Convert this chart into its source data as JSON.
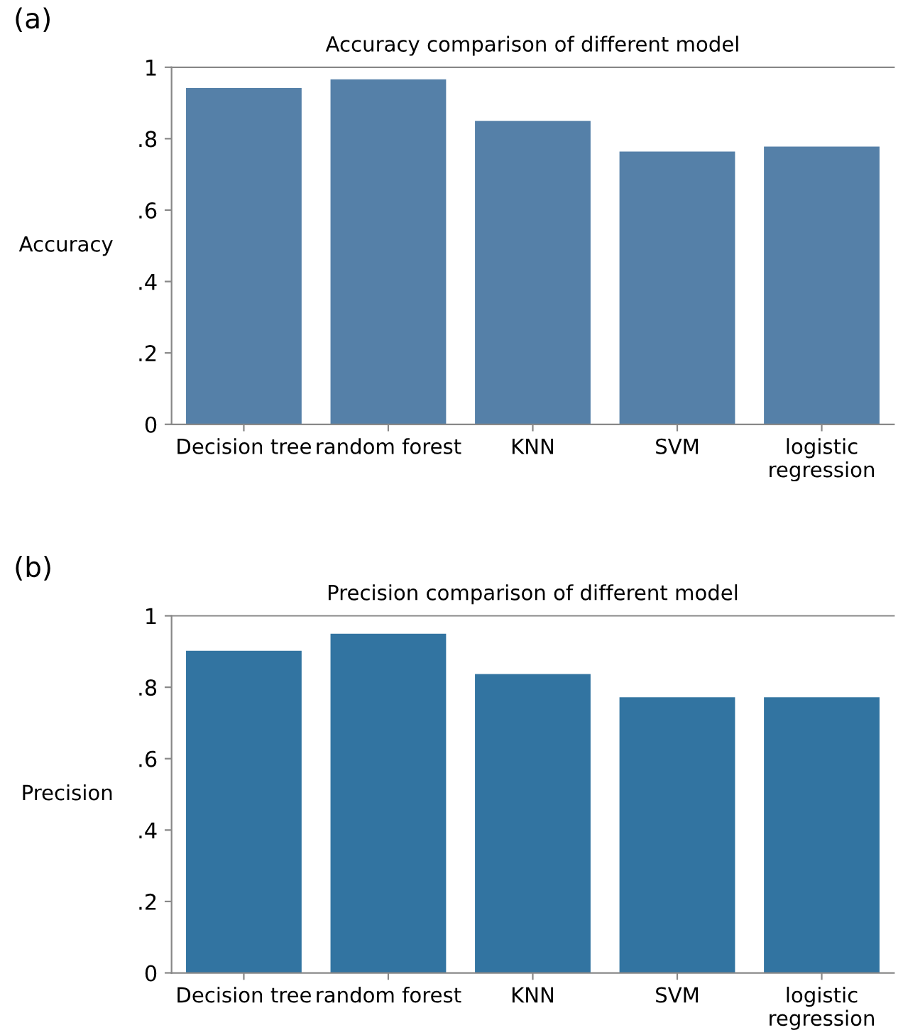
{
  "chart_data": [
    {
      "type": "bar",
      "title": "Accuracy comparison of different model",
      "ylabel": "Accuracy",
      "annotations": [
        "(a)"
      ],
      "categories": [
        "Decision tree",
        "random forest",
        "KNN",
        "SVM",
        "logistic\nregression"
      ],
      "values": [
        0.942,
        0.966,
        0.85,
        0.764,
        0.778
      ],
      "color": "#5580a8",
      "ylim": [
        0,
        1
      ],
      "yticks": [
        {
          "value": 0,
          "label": "0"
        },
        {
          "value": 0.2,
          "label": ".2"
        },
        {
          "value": 0.4,
          "label": ".4"
        },
        {
          "value": 0.6,
          "label": ".6"
        },
        {
          "value": 0.8,
          "label": ".8"
        },
        {
          "value": 1,
          "label": "1"
        }
      ],
      "grid": false
    },
    {
      "type": "bar",
      "title": "Precision comparison of different model",
      "ylabel": "Precision",
      "annotations": [
        "(b)"
      ],
      "categories": [
        "Decision tree",
        "random forest",
        "KNN",
        "SVM",
        "logistic\nregression"
      ],
      "values": [
        0.902,
        0.95,
        0.837,
        0.772,
        0.772
      ],
      "color": "#3274a1",
      "ylim": [
        0,
        1
      ],
      "yticks": [
        {
          "value": 0,
          "label": "0"
        },
        {
          "value": 0.2,
          "label": ".2"
        },
        {
          "value": 0.4,
          "label": ".4"
        },
        {
          "value": 0.6,
          "label": ".6"
        },
        {
          "value": 0.8,
          "label": ".8"
        },
        {
          "value": 1,
          "label": "1"
        }
      ],
      "grid": false
    }
  ]
}
